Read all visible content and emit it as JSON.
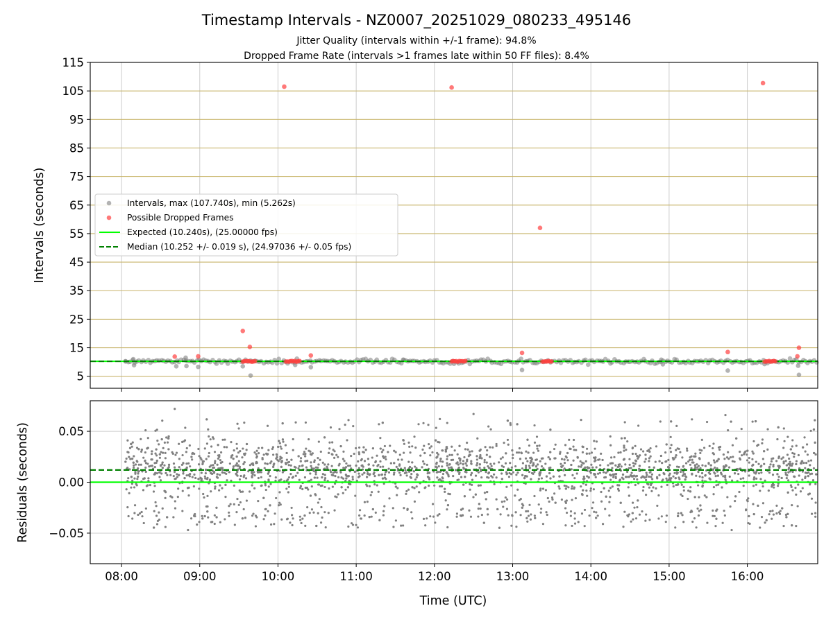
{
  "chart_data": {
    "title": "Timestamp Intervals - NZ0007_20251029_080233_495146",
    "subtitle_lines": [
      "Jitter Quality (intervals within +/-1 frame): 94.8%",
      "Dropped Frame Rate (intervals >1 frames late within 50 FF files): 8.4%"
    ],
    "xlabel": "Time (UTC)",
    "x_range_hours": [
      7.6,
      16.9
    ],
    "x_ticks": [
      {
        "label": "08:00",
        "hour": 8
      },
      {
        "label": "09:00",
        "hour": 9
      },
      {
        "label": "10:00",
        "hour": 10
      },
      {
        "label": "11:00",
        "hour": 11
      },
      {
        "label": "12:00",
        "hour": 12
      },
      {
        "label": "13:00",
        "hour": 13
      },
      {
        "label": "14:00",
        "hour": 14
      },
      {
        "label": "15:00",
        "hour": 15
      },
      {
        "label": "16:00",
        "hour": 16
      }
    ],
    "panels": [
      {
        "name": "intervals",
        "type": "scatter",
        "ylabel": "Intervals (seconds)",
        "ylim": [
          0.8,
          115
        ],
        "y_ticks": [
          "5",
          "15",
          "25",
          "35",
          "45",
          "55",
          "65",
          "75",
          "85",
          "95",
          "105",
          "115"
        ],
        "grid": true,
        "legend_position": "center-left",
        "legend": [
          "Intervals, max (107.740s), min (5.262s)",
          "Possible Dropped Frames",
          "Expected (10.240s), (25.00000 fps)",
          "Median (10.252 +/- 0.019 s), (24.97036 +/- 0.05 fps)"
        ],
        "expected_line_value": 10.24,
        "median_line_value": 10.252,
        "baseline_start_hour": 8.05,
        "baseline_end_hour": 16.9,
        "interval_outliers": [
          {
            "x": 8.05,
            "y": 10.3
          },
          {
            "x": 8.15,
            "y": 11.0
          },
          {
            "x": 8.16,
            "y": 8.9
          },
          {
            "x": 8.7,
            "y": 8.5
          },
          {
            "x": 8.82,
            "y": 11.5
          },
          {
            "x": 8.83,
            "y": 8.6
          },
          {
            "x": 8.98,
            "y": 8.3
          },
          {
            "x": 9.55,
            "y": 8.5
          },
          {
            "x": 9.65,
            "y": 5.26
          },
          {
            "x": 10.22,
            "y": 9.0
          },
          {
            "x": 10.42,
            "y": 8.2
          },
          {
            "x": 11.6,
            "y": 10.8
          },
          {
            "x": 12.25,
            "y": 9.4
          },
          {
            "x": 13.12,
            "y": 7.2
          },
          {
            "x": 14.9,
            "y": 10.8
          },
          {
            "x": 14.92,
            "y": 9.2
          },
          {
            "x": 15.75,
            "y": 7.0
          },
          {
            "x": 16.22,
            "y": 9.3
          },
          {
            "x": 16.65,
            "y": 8.7
          },
          {
            "x": 16.66,
            "y": 5.5
          }
        ],
        "dropped_frames": [
          {
            "x": 8.68,
            "y": 11.9
          },
          {
            "x": 8.98,
            "y": 12.0
          },
          {
            "x": 9.55,
            "y": 20.9
          },
          {
            "x": 9.64,
            "y": 15.3
          },
          {
            "x": 10.08,
            "y": 106.5
          },
          {
            "x": 10.42,
            "y": 12.3
          },
          {
            "x": 12.22,
            "y": 106.2
          },
          {
            "x": 13.12,
            "y": 13.2
          },
          {
            "x": 13.35,
            "y": 57.0
          },
          {
            "x": 15.75,
            "y": 13.5
          },
          {
            "x": 16.2,
            "y": 107.74
          },
          {
            "x": 16.64,
            "y": 12.0
          },
          {
            "x": 16.66,
            "y": 15.0
          }
        ],
        "dropped_frame_clusters": [
          {
            "x_start": 9.55,
            "x_end": 9.72,
            "y": 10.24
          },
          {
            "x_start": 10.1,
            "x_end": 10.28,
            "y": 10.24
          },
          {
            "x_start": 12.22,
            "x_end": 12.4,
            "y": 10.24
          },
          {
            "x_start": 13.38,
            "x_end": 13.5,
            "y": 10.24
          },
          {
            "x_start": 16.22,
            "x_end": 16.36,
            "y": 10.24
          }
        ]
      },
      {
        "name": "residuals",
        "type": "scatter",
        "ylabel": "Residuals (seconds)",
        "ylim": [
          -0.08,
          0.08
        ],
        "y_ticks": [
          {
            "label": "−0.05",
            "value": -0.05
          },
          {
            "label": "0.00",
            "value": 0.0
          },
          {
            "label": "0.05",
            "value": 0.05
          }
        ],
        "grid": true,
        "expected_line_value": 0.0,
        "median_line_value": 0.012,
        "residual_distribution": {
          "x_start": 8.05,
          "x_end": 16.88,
          "count": 2600,
          "core_center": 0.012,
          "core_spread": 0.01,
          "outer_range": [
            -0.045,
            0.045
          ],
          "extremes": [
            {
              "x": 8.68,
              "y": 0.072
            },
            {
              "x": 8.85,
              "y": -0.047
            },
            {
              "x": 15.72,
              "y": 0.066
            },
            {
              "x": 15.8,
              "y": -0.047
            },
            {
              "x": 12.5,
              "y": 0.067
            },
            {
              "x": 9.95,
              "y": -0.041
            }
          ]
        }
      }
    ],
    "colors": {
      "interval_points": "#808080",
      "dropped_points": "#ff4040",
      "expected_line": "#00ff00",
      "median_line": "#008000",
      "vertical_grid": "#cccccc",
      "horizontal_grid_top": "#c8b46a",
      "horizontal_grid_bottom": "#cccccc"
    }
  }
}
